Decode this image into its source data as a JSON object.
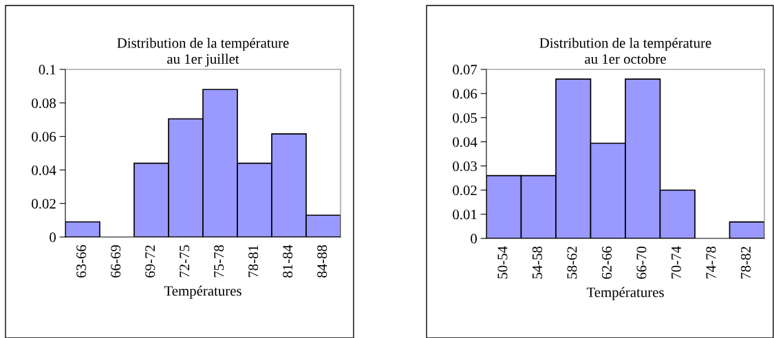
{
  "chart_data": [
    {
      "type": "bar",
      "title": "Distribution de la température\nau 1er juillet",
      "xlabel": "Températures",
      "categories": [
        "63-66",
        "66-69",
        "69-72",
        "72-75",
        "75-78",
        "78-81",
        "81-84",
        "84-88"
      ],
      "values": [
        0.009,
        0,
        0.044,
        0.0705,
        0.088,
        0.044,
        0.0615,
        0.013
      ],
      "color": "#9999ff",
      "ylim": [
        0,
        0.1
      ],
      "yticks": [
        0,
        0.02,
        0.04,
        0.06,
        0.08,
        0.1
      ],
      "grid": false,
      "legend": false
    },
    {
      "type": "bar",
      "title": "Distribution de la température\nau 1er octobre",
      "xlabel": "Températures",
      "categories": [
        "50-54",
        "54-58",
        "58-62",
        "62-66",
        "66-70",
        "70-74",
        "74-78",
        "78-82"
      ],
      "values": [
        0.026,
        0.026,
        0.066,
        0.0394,
        0.066,
        0.02,
        0,
        0.0068
      ],
      "color": "#9999ff",
      "ylim": [
        0,
        0.07
      ],
      "yticks": [
        0,
        0.01,
        0.02,
        0.03,
        0.04,
        0.05,
        0.06,
        0.07
      ],
      "grid": false,
      "legend": false
    }
  ]
}
